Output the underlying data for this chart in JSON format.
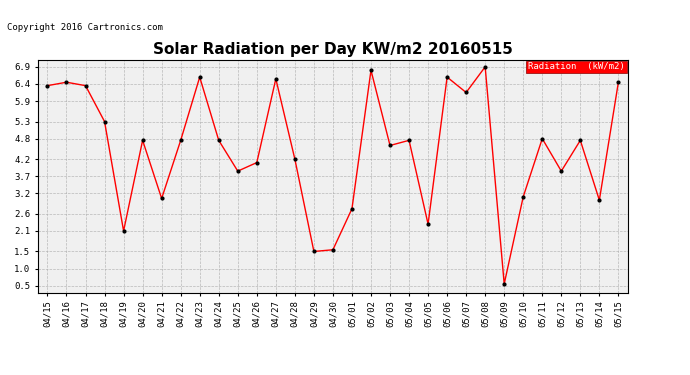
{
  "title": "Solar Radiation per Day KW/m2 20160515",
  "copyright": "Copyright 2016 Cartronics.com",
  "legend_label": "Radiation  (kW/m2)",
  "x_labels": [
    "04/15",
    "04/16",
    "04/17",
    "04/18",
    "04/19",
    "04/20",
    "04/21",
    "04/22",
    "04/23",
    "04/24",
    "04/25",
    "04/26",
    "04/27",
    "04/28",
    "04/29",
    "04/30",
    "05/01",
    "05/02",
    "05/03",
    "05/04",
    "05/05",
    "05/06",
    "05/07",
    "05/08",
    "05/09",
    "05/10",
    "05/11",
    "05/12",
    "05/13",
    "05/14",
    "05/15"
  ],
  "y_values": [
    6.35,
    6.45,
    6.35,
    5.3,
    2.1,
    4.75,
    3.05,
    4.75,
    6.6,
    4.75,
    3.85,
    4.1,
    6.55,
    4.2,
    1.5,
    1.55,
    2.75,
    6.8,
    4.6,
    4.75,
    2.3,
    6.6,
    6.15,
    6.9,
    0.55,
    3.1,
    4.8,
    3.85,
    4.75,
    3.0,
    6.45
  ],
  "y_ticks": [
    0.5,
    1.0,
    1.5,
    2.1,
    2.6,
    3.2,
    3.7,
    4.2,
    4.8,
    5.3,
    5.9,
    6.4,
    6.9
  ],
  "y_min": 0.3,
  "y_max": 7.1,
  "line_color": "red",
  "marker_color": "black",
  "background_color": "#ffffff",
  "plot_bg_color": "#f0f0f0",
  "grid_color": "#aaaaaa",
  "title_fontsize": 11,
  "copyright_fontsize": 6.5,
  "tick_fontsize": 6.5,
  "legend_fontsize": 6.5,
  "legend_bg": "red",
  "legend_text_color": "white"
}
